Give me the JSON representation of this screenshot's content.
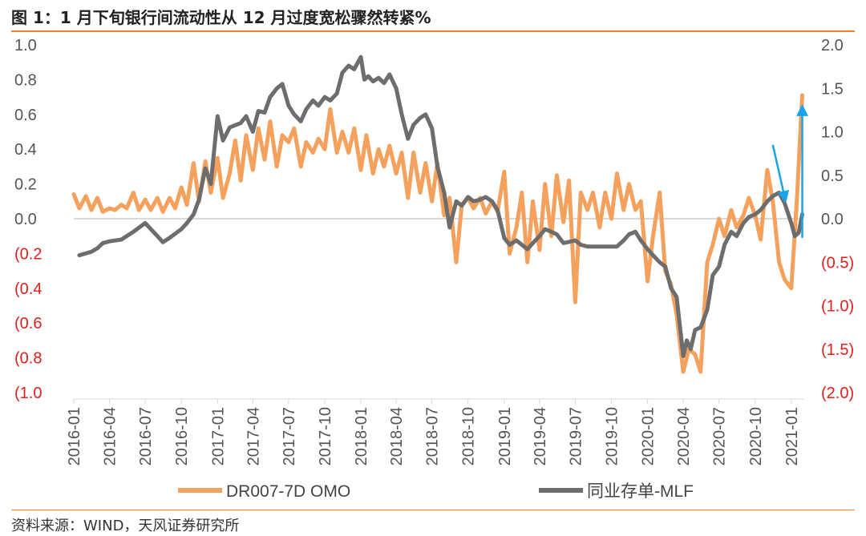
{
  "title": "图 1：1 月下旬银行间流动性从 12 月过度宽松骤然转紧%",
  "source": "资料来源：WIND，天风证券研究所",
  "colors": {
    "orange": "#f4a15d",
    "gray": "#6d6d6d",
    "arrow": "#1aa3e8",
    "negative": "#e0201b",
    "accent_rule": "#f4822a",
    "axis": "#d9d9d9"
  },
  "chart_data": {
    "type": "line",
    "title": "",
    "xlabel": "",
    "ylabel_left": "",
    "ylabel_right": "",
    "grid": false,
    "legend_position": "bottom",
    "x_ticks": [
      "2016-01",
      "2016-04",
      "2016-07",
      "2016-10",
      "2017-01",
      "2017-04",
      "2017-07",
      "2017-10",
      "2018-01",
      "2018-04",
      "2018-07",
      "2018-10",
      "2019-01",
      "2019-04",
      "2019-07",
      "2019-10",
      "2020-01",
      "2020-04",
      "2020-07",
      "2020-10",
      "2021-01"
    ],
    "y_left_ticks": [
      "1.0",
      "0.8",
      "0.6",
      "0.4",
      "0.2",
      "0.0",
      "(0.2",
      "(0.4",
      "(0.6",
      "(0.8",
      "(1.0"
    ],
    "y_right_ticks": [
      "2.0",
      "1.5",
      "1.0",
      "0.5",
      "0.0",
      "(0.5)",
      "(1.0)",
      "(1.5)",
      "(2.0)"
    ],
    "ylim_left": [
      -1.0,
      1.0
    ],
    "ylim_right": [
      -2.0,
      2.0
    ],
    "series": [
      {
        "name": "DR007-7D OMO",
        "axis": "left",
        "color": "#f4a15d",
        "points": [
          [
            "2016-01-01",
            0.14
          ],
          [
            "2016-01-15",
            0.06
          ],
          [
            "2016-02-01",
            0.13
          ],
          [
            "2016-02-15",
            0.05
          ],
          [
            "2016-03-01",
            0.12
          ],
          [
            "2016-03-15",
            0.04
          ],
          [
            "2016-04-01",
            0.06
          ],
          [
            "2016-04-15",
            0.05
          ],
          [
            "2016-05-01",
            0.08
          ],
          [
            "2016-05-15",
            0.06
          ],
          [
            "2016-06-01",
            0.15
          ],
          [
            "2016-06-15",
            0.05
          ],
          [
            "2016-07-01",
            0.11
          ],
          [
            "2016-07-15",
            0.05
          ],
          [
            "2016-08-01",
            0.12
          ],
          [
            "2016-08-15",
            0.04
          ],
          [
            "2016-09-01",
            0.12
          ],
          [
            "2016-09-15",
            0.06
          ],
          [
            "2016-10-01",
            0.18
          ],
          [
            "2016-10-15",
            0.08
          ],
          [
            "2016-11-01",
            0.32
          ],
          [
            "2016-11-15",
            0.1
          ],
          [
            "2016-12-01",
            0.33
          ],
          [
            "2016-12-15",
            0.15
          ],
          [
            "2017-01-01",
            0.35
          ],
          [
            "2017-01-15",
            0.12
          ],
          [
            "2017-02-01",
            0.26
          ],
          [
            "2017-02-15",
            0.45
          ],
          [
            "2017-03-01",
            0.22
          ],
          [
            "2017-03-15",
            0.48
          ],
          [
            "2017-04-01",
            0.28
          ],
          [
            "2017-04-15",
            0.52
          ],
          [
            "2017-05-01",
            0.34
          ],
          [
            "2017-05-15",
            0.56
          ],
          [
            "2017-06-01",
            0.3
          ],
          [
            "2017-06-15",
            0.48
          ],
          [
            "2017-07-01",
            0.44
          ],
          [
            "2017-07-15",
            0.52
          ],
          [
            "2017-08-01",
            0.3
          ],
          [
            "2017-08-15",
            0.44
          ],
          [
            "2017-09-01",
            0.38
          ],
          [
            "2017-09-15",
            0.46
          ],
          [
            "2017-10-01",
            0.4
          ],
          [
            "2017-10-15",
            0.63
          ],
          [
            "2017-11-01",
            0.38
          ],
          [
            "2017-11-15",
            0.5
          ],
          [
            "2017-12-01",
            0.38
          ],
          [
            "2017-12-15",
            0.52
          ],
          [
            "2018-01-01",
            0.28
          ],
          [
            "2018-01-15",
            0.48
          ],
          [
            "2018-02-01",
            0.26
          ],
          [
            "2018-02-15",
            0.4
          ],
          [
            "2018-03-01",
            0.3
          ],
          [
            "2018-03-15",
            0.42
          ],
          [
            "2018-04-01",
            0.26
          ],
          [
            "2018-04-15",
            0.38
          ],
          [
            "2018-05-01",
            0.12
          ],
          [
            "2018-05-15",
            0.38
          ],
          [
            "2018-06-01",
            0.15
          ],
          [
            "2018-06-15",
            0.32
          ],
          [
            "2018-07-01",
            0.1
          ],
          [
            "2018-07-15",
            0.32
          ],
          [
            "2018-08-01",
            0.02
          ],
          [
            "2018-08-15",
            0.12
          ],
          [
            "2018-09-01",
            -0.25
          ],
          [
            "2018-09-15",
            0.08
          ],
          [
            "2018-10-01",
            0.12
          ],
          [
            "2018-10-15",
            0.06
          ],
          [
            "2018-11-01",
            0.12
          ],
          [
            "2018-11-15",
            0.03
          ],
          [
            "2018-12-01",
            0.1
          ],
          [
            "2018-12-15",
            0.04
          ],
          [
            "2019-01-01",
            0.27
          ],
          [
            "2019-01-15",
            -0.2
          ],
          [
            "2019-02-01",
            -0.05
          ],
          [
            "2019-02-15",
            0.15
          ],
          [
            "2019-03-01",
            -0.25
          ],
          [
            "2019-03-15",
            0.1
          ],
          [
            "2019-04-01",
            -0.18
          ],
          [
            "2019-04-15",
            0.2
          ],
          [
            "2019-05-01",
            -0.1
          ],
          [
            "2019-05-15",
            0.25
          ],
          [
            "2019-06-01",
            -0.02
          ],
          [
            "2019-06-15",
            0.22
          ],
          [
            "2019-07-01",
            -0.48
          ],
          [
            "2019-07-15",
            0.15
          ],
          [
            "2019-08-01",
            0.05
          ],
          [
            "2019-08-15",
            0.15
          ],
          [
            "2019-09-01",
            -0.05
          ],
          [
            "2019-09-15",
            0.15
          ],
          [
            "2019-10-01",
            0.0
          ],
          [
            "2019-10-15",
            0.26
          ],
          [
            "2019-11-01",
            0.05
          ],
          [
            "2019-11-15",
            0.2
          ],
          [
            "2019-12-01",
            0.05
          ],
          [
            "2019-12-15",
            0.1
          ],
          [
            "2020-01-01",
            -0.36
          ],
          [
            "2020-01-15",
            -0.1
          ],
          [
            "2020-02-01",
            0.15
          ],
          [
            "2020-02-15",
            -0.3
          ],
          [
            "2020-03-01",
            -0.38
          ],
          [
            "2020-03-15",
            -0.55
          ],
          [
            "2020-04-01",
            -0.88
          ],
          [
            "2020-04-15",
            -0.75
          ],
          [
            "2020-05-01",
            -0.78
          ],
          [
            "2020-05-15",
            -0.88
          ],
          [
            "2020-06-01",
            -0.25
          ],
          [
            "2020-06-15",
            -0.15
          ],
          [
            "2020-07-01",
            0.0
          ],
          [
            "2020-07-15",
            -0.1
          ],
          [
            "2020-08-01",
            0.05
          ],
          [
            "2020-08-15",
            -0.05
          ],
          [
            "2020-09-01",
            0.02
          ],
          [
            "2020-09-15",
            0.12
          ],
          [
            "2020-10-01",
            0.02
          ],
          [
            "2020-10-15",
            -0.12
          ],
          [
            "2020-11-01",
            0.28
          ],
          [
            "2020-11-15",
            0.1
          ],
          [
            "2020-12-01",
            -0.25
          ],
          [
            "2020-12-15",
            -0.35
          ],
          [
            "2021-01-01",
            -0.4
          ],
          [
            "2021-01-15",
            0.1
          ],
          [
            "2021-01-29",
            0.71
          ]
        ]
      },
      {
        "name": "同业存单-MLF",
        "axis": "right",
        "color": "#6d6d6d",
        "points": [
          [
            "2016-01-15",
            -0.42
          ],
          [
            "2016-02-15",
            -0.38
          ],
          [
            "2016-03-01",
            -0.34
          ],
          [
            "2016-03-15",
            -0.28
          ],
          [
            "2016-04-01",
            -0.26
          ],
          [
            "2016-05-01",
            -0.24
          ],
          [
            "2016-06-01",
            -0.15
          ],
          [
            "2016-07-01",
            -0.05
          ],
          [
            "2016-08-01",
            -0.2
          ],
          [
            "2016-08-15",
            -0.27
          ],
          [
            "2016-09-01",
            -0.22
          ],
          [
            "2016-10-01",
            -0.12
          ],
          [
            "2016-10-15",
            -0.05
          ],
          [
            "2016-11-01",
            0.05
          ],
          [
            "2016-11-15",
            0.22
          ],
          [
            "2016-12-01",
            0.58
          ],
          [
            "2016-12-15",
            0.4
          ],
          [
            "2017-01-01",
            1.18
          ],
          [
            "2017-01-15",
            0.9
          ],
          [
            "2017-02-01",
            1.05
          ],
          [
            "2017-03-01",
            1.1
          ],
          [
            "2017-03-15",
            1.18
          ],
          [
            "2017-04-01",
            1.0
          ],
          [
            "2017-04-15",
            1.24
          ],
          [
            "2017-05-01",
            1.22
          ],
          [
            "2017-05-15",
            1.4
          ],
          [
            "2017-06-01",
            1.5
          ],
          [
            "2017-06-15",
            1.55
          ],
          [
            "2017-07-01",
            1.3
          ],
          [
            "2017-07-15",
            1.2
          ],
          [
            "2017-08-01",
            1.12
          ],
          [
            "2017-08-15",
            1.26
          ],
          [
            "2017-09-01",
            1.36
          ],
          [
            "2017-09-15",
            1.3
          ],
          [
            "2017-10-01",
            1.4
          ],
          [
            "2017-10-15",
            1.36
          ],
          [
            "2017-11-01",
            1.44
          ],
          [
            "2017-11-15",
            1.68
          ],
          [
            "2017-12-01",
            1.76
          ],
          [
            "2017-12-15",
            1.72
          ],
          [
            "2018-01-01",
            1.86
          ],
          [
            "2018-01-10",
            1.6
          ],
          [
            "2018-01-20",
            1.64
          ],
          [
            "2018-02-01",
            1.58
          ],
          [
            "2018-02-15",
            1.62
          ],
          [
            "2018-03-01",
            1.56
          ],
          [
            "2018-03-15",
            1.66
          ],
          [
            "2018-04-01",
            1.5
          ],
          [
            "2018-04-15",
            1.2
          ],
          [
            "2018-05-01",
            0.92
          ],
          [
            "2018-05-15",
            1.08
          ],
          [
            "2018-06-01",
            1.16
          ],
          [
            "2018-06-15",
            1.2
          ],
          [
            "2018-07-01",
            1.04
          ],
          [
            "2018-07-15",
            0.6
          ],
          [
            "2018-08-01",
            0.3
          ],
          [
            "2018-08-15",
            -0.1
          ],
          [
            "2018-09-01",
            0.2
          ],
          [
            "2018-09-15",
            0.15
          ],
          [
            "2018-10-01",
            0.25
          ],
          [
            "2018-10-15",
            0.2
          ],
          [
            "2018-11-01",
            0.22
          ],
          [
            "2018-11-15",
            0.25
          ],
          [
            "2018-12-01",
            0.2
          ],
          [
            "2018-12-15",
            0.1
          ],
          [
            "2019-01-01",
            -0.22
          ],
          [
            "2019-01-15",
            -0.3
          ],
          [
            "2019-02-01",
            -0.25
          ],
          [
            "2019-02-15",
            -0.3
          ],
          [
            "2019-03-01",
            -0.35
          ],
          [
            "2019-03-15",
            -0.28
          ],
          [
            "2019-04-01",
            -0.2
          ],
          [
            "2019-04-15",
            -0.12
          ],
          [
            "2019-05-01",
            -0.15
          ],
          [
            "2019-05-15",
            -0.18
          ],
          [
            "2019-06-01",
            -0.28
          ],
          [
            "2019-07-01",
            -0.25
          ],
          [
            "2019-07-15",
            -0.3
          ],
          [
            "2019-08-01",
            -0.32
          ],
          [
            "2019-09-01",
            -0.32
          ],
          [
            "2019-10-01",
            -0.32
          ],
          [
            "2019-10-15",
            -0.32
          ],
          [
            "2019-11-01",
            -0.25
          ],
          [
            "2019-11-15",
            -0.18
          ],
          [
            "2019-12-01",
            -0.15
          ],
          [
            "2019-12-15",
            -0.25
          ],
          [
            "2020-01-01",
            -0.35
          ],
          [
            "2020-01-15",
            -0.42
          ],
          [
            "2020-02-01",
            -0.5
          ],
          [
            "2020-02-15",
            -0.55
          ],
          [
            "2020-03-01",
            -0.8
          ],
          [
            "2020-03-15",
            -0.9
          ],
          [
            "2020-04-01",
            -1.58
          ],
          [
            "2020-04-10",
            -1.4
          ],
          [
            "2020-04-20",
            -1.5
          ],
          [
            "2020-05-01",
            -1.28
          ],
          [
            "2020-05-15",
            -1.25
          ],
          [
            "2020-06-01",
            -1.05
          ],
          [
            "2020-06-15",
            -0.65
          ],
          [
            "2020-07-01",
            -0.55
          ],
          [
            "2020-07-15",
            -0.3
          ],
          [
            "2020-08-01",
            -0.15
          ],
          [
            "2020-08-15",
            -0.2
          ],
          [
            "2020-09-01",
            -0.05
          ],
          [
            "2020-09-15",
            0.02
          ],
          [
            "2020-10-01",
            0.05
          ],
          [
            "2020-10-15",
            0.1
          ],
          [
            "2020-11-01",
            0.2
          ],
          [
            "2020-11-15",
            0.26
          ],
          [
            "2020-12-01",
            0.3
          ],
          [
            "2020-12-15",
            0.18
          ],
          [
            "2021-01-01",
            -0.05
          ],
          [
            "2021-01-10",
            -0.2
          ],
          [
            "2021-01-20",
            -0.16
          ],
          [
            "2021-01-29",
            0.05
          ]
        ]
      }
    ],
    "annotations": [
      {
        "type": "arrow",
        "color": "#1aa3e8",
        "direction": "down",
        "from": [
          "2020-11-15",
          0.85
        ],
        "to": [
          "2020-12-15",
          0.25
        ],
        "axis": "right"
      },
      {
        "type": "arrow",
        "color": "#1aa3e8",
        "direction": "up",
        "from": [
          "2021-01-29",
          -0.22
        ],
        "to": [
          "2021-01-29",
          1.25
        ],
        "axis": "right"
      }
    ]
  }
}
